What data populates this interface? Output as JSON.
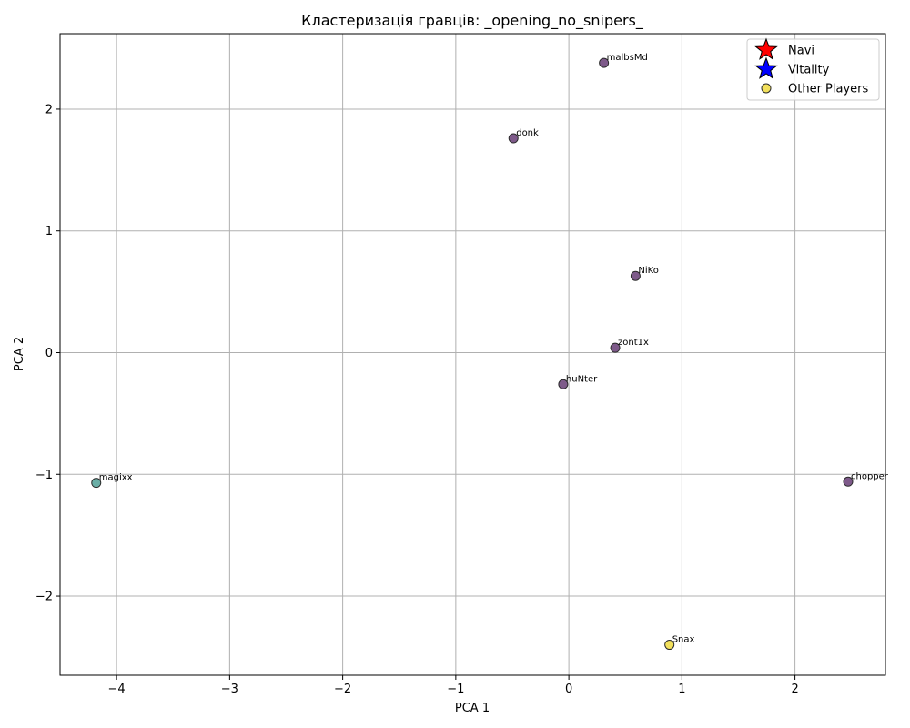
{
  "chart_data": {
    "type": "scatter",
    "title": "Кластеризація гравців: _opening_no_snipers_",
    "xlabel": "PCA 1",
    "ylabel": "PCA 2",
    "xlim": [
      -4.5,
      2.8
    ],
    "ylim": [
      -2.65,
      2.62
    ],
    "xticks": [
      -4,
      -3,
      -2,
      -1,
      0,
      1,
      2
    ],
    "yticks": [
      -2,
      -1,
      0,
      1,
      2
    ],
    "grid": true,
    "legend_position": "top-right",
    "points": [
      {
        "label": "malbsMd",
        "x": 0.31,
        "y": 2.38,
        "color": "#7e5a8a"
      },
      {
        "label": "donk",
        "x": -0.49,
        "y": 1.76,
        "color": "#7e5a8a"
      },
      {
        "label": "NiKo",
        "x": 0.59,
        "y": 0.63,
        "color": "#7e5a8a"
      },
      {
        "label": "zont1x",
        "x": 0.41,
        "y": 0.04,
        "color": "#7e5a8a"
      },
      {
        "label": "huNter-",
        "x": -0.05,
        "y": -0.26,
        "color": "#7e5a8a"
      },
      {
        "label": "magixx",
        "x": -4.18,
        "y": -1.07,
        "color": "#6aaea6"
      },
      {
        "label": "chopper",
        "x": 2.47,
        "y": -1.06,
        "color": "#7e5a8a"
      },
      {
        "label": "Snax",
        "x": 0.89,
        "y": -2.4,
        "color": "#f2e05c"
      }
    ],
    "legend": [
      {
        "label": "Navi",
        "marker": "star",
        "color": "#ff0000"
      },
      {
        "label": "Vitality",
        "marker": "star",
        "color": "#0000ff"
      },
      {
        "label": "Other Players",
        "marker": "circle",
        "color": "#f2e05c"
      }
    ]
  }
}
